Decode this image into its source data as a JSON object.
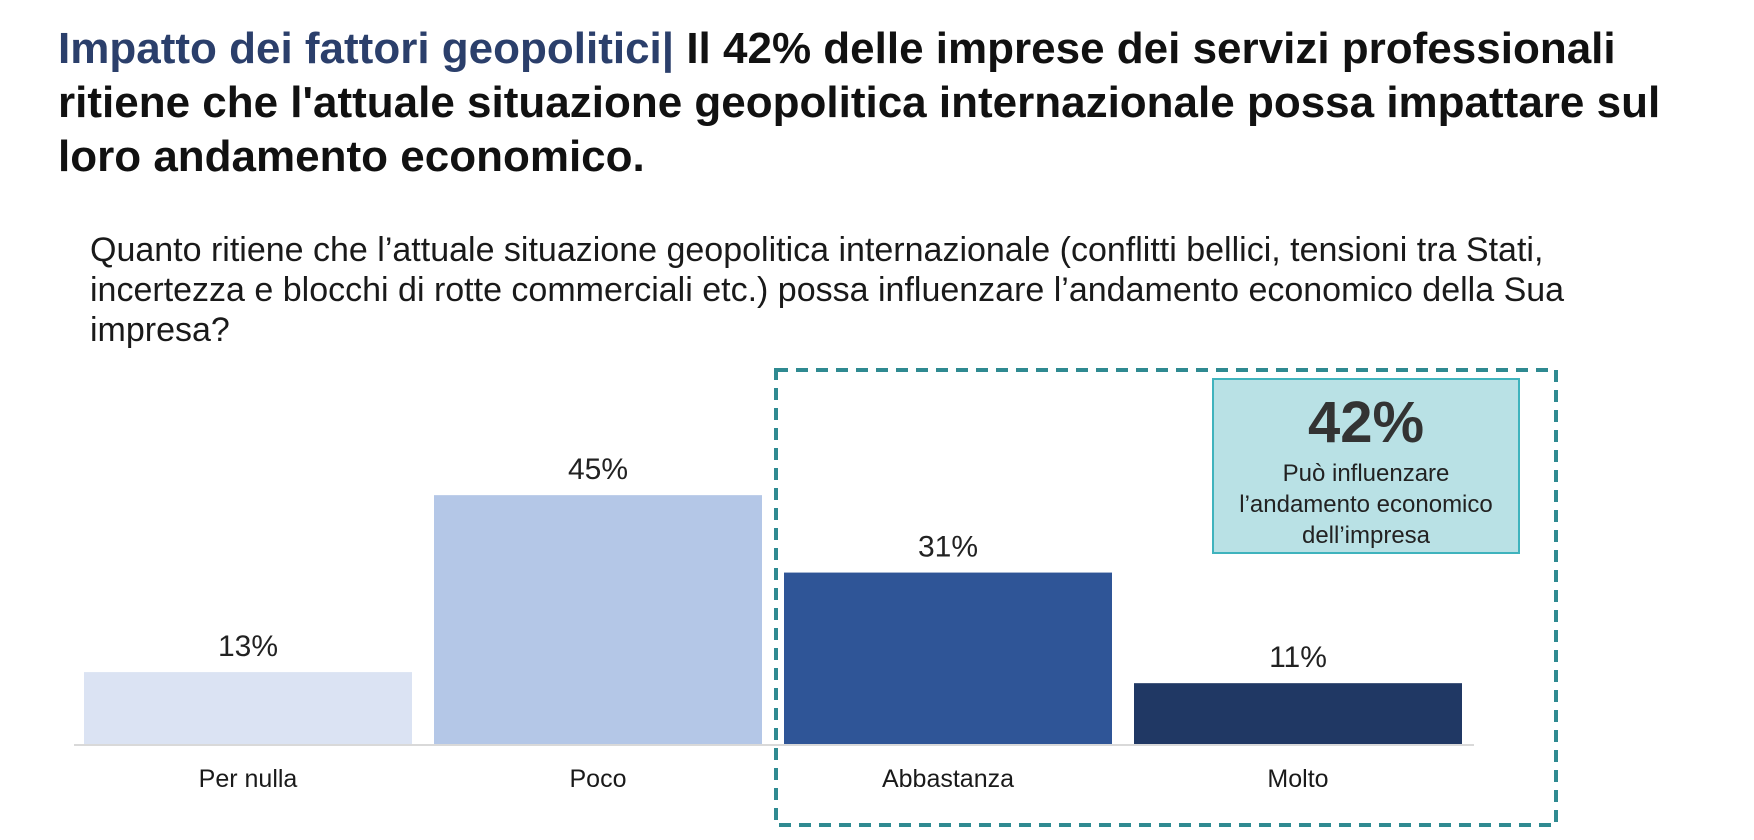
{
  "header": {
    "accent_title": "Impatto dei fattori geopolitici",
    "separator": "|",
    "headline": "Il 42% delle imprese dei servizi professionali ritiene che l'attuale situazione geopolitica internazionale possa impattare sul loro andamento economico."
  },
  "question": "Quanto ritiene che l’attuale situazione geopolitica internazionale (conflitti bellici, tensioni tra Stati, incertezza e blocchi di rotte commerciali etc.) possa influenzare l’andamento economico della Sua impresa?",
  "callout": {
    "value": "42%",
    "text": "Può influenzare l’andamento economico dell’impresa"
  },
  "colors": {
    "accent": "#2b3f6b",
    "callout_bg": "#b9e1e5",
    "callout_border": "#3fb3bd",
    "dashed_box": "#2f8a91"
  },
  "chart_data": {
    "type": "bar",
    "categories": [
      "Per nulla",
      "Poco",
      "Abbastanza",
      "Molto"
    ],
    "values": [
      13,
      45,
      31,
      11
    ],
    "data_labels": [
      "13%",
      "45%",
      "31%",
      "11%"
    ],
    "colors": [
      "#dbe3f3",
      "#b4c7e7",
      "#2f5597",
      "#203864"
    ],
    "ylim": [
      0,
      50
    ],
    "grid": false,
    "highlight": {
      "categories": [
        "Abbastanza",
        "Molto"
      ],
      "style": "dashed-box"
    }
  }
}
